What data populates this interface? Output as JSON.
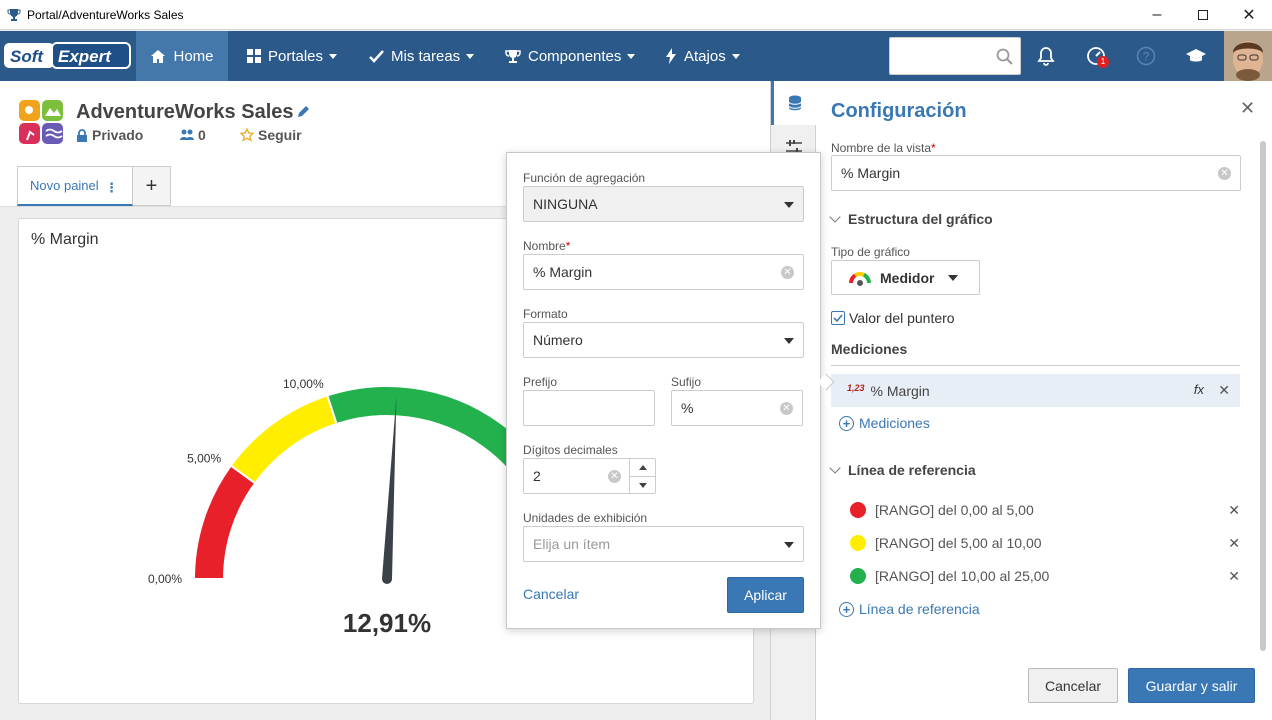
{
  "window": {
    "title": "Portal/AdventureWorks Sales"
  },
  "nav": {
    "home": "Home",
    "portales": "Portales",
    "mis_tareas": "Mis tareas",
    "componentes": "Componentes",
    "atajos": "Atajos",
    "search_placeholder": "",
    "notification_count": "1"
  },
  "portal": {
    "title": "AdventureWorks Sales",
    "privacy": "Privado",
    "followers": "0",
    "follow": "Seguir",
    "tab_label": "Novo painel",
    "add_tab": "+"
  },
  "widget": {
    "title": "% Margin",
    "value_label": "12,91%",
    "tick_labels": [
      "0,00%",
      "5,00%",
      "10,00%"
    ]
  },
  "gauge_data": {
    "value": 12.91,
    "min": 0,
    "max": 25,
    "ranges": [
      {
        "from": 0,
        "to": 5,
        "color": "#e8202a"
      },
      {
        "from": 5,
        "to": 10,
        "color": "#ffee00"
      },
      {
        "from": 10,
        "to": 25,
        "color": "#22b14c"
      }
    ]
  },
  "config": {
    "title": "Configuración",
    "view_name_label": "Nombre de la vista",
    "view_name_value": "% Margin",
    "structure_section": "Estructura del gráfico",
    "chart_type_label": "Tipo de gráfico",
    "chart_type_value": "Medidor",
    "pointer_value_label": "Valor del puntero",
    "pointer_value_checked": true,
    "measures_section": "Mediciones",
    "measure_item": "% Margin",
    "measure_icon_text": "1,23",
    "fx_label": "fx",
    "add_measure": "Mediciones",
    "reference_section": "Línea de referencia",
    "reference_lines": [
      {
        "label": "[RANGO] del 0,00 al 5,00",
        "color": "#e8202a"
      },
      {
        "label": "[RANGO] del 5,00 al 10,00",
        "color": "#ffee00"
      },
      {
        "label": "[RANGO] del 10,00 al 25,00",
        "color": "#22b14c"
      }
    ],
    "add_reference": "Línea de referencia",
    "cancel_button": "Cancelar",
    "save_button": "Guardar y salir"
  },
  "popup": {
    "aggregation_label": "Función de agregación",
    "aggregation_value": "NINGUNA",
    "name_label": "Nombre",
    "name_value": "% Margin",
    "format_label": "Formato",
    "format_value": "Número",
    "prefix_label": "Prefijo",
    "prefix_value": "",
    "suffix_label": "Sufijo",
    "suffix_value": "%",
    "decimals_label": "Dígitos decimales",
    "decimals_value": "2",
    "units_label": "Unidades de exhibición",
    "units_placeholder": "Elija un ítem",
    "cancel": "Cancelar",
    "apply": "Aplicar"
  },
  "colors": {
    "accent": "#3a78b5",
    "nav_bg": "#2b5a8a"
  }
}
